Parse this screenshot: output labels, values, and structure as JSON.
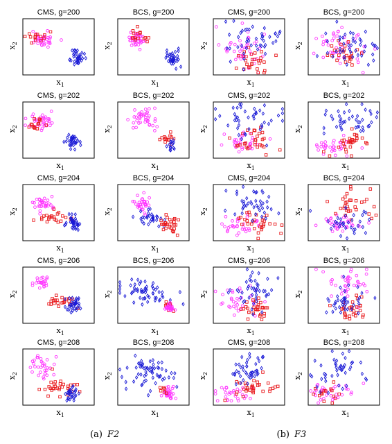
{
  "captions": [
    {
      "prefix": "(a)",
      "label": "F2"
    },
    {
      "prefix": "(b)",
      "label": "F3"
    }
  ],
  "axis": {
    "x_base": "x",
    "x_sub": "1",
    "y_base": "x",
    "y_sub": "2"
  },
  "colors": {
    "magenta": "#ff33ff",
    "red": "#e8191c",
    "blue": "#1a1ad6",
    "frame": "#000000"
  },
  "legend": {
    "magenta": "circle",
    "red": "square",
    "blue": "diamond"
  },
  "chart_data": [
    {
      "type": "scatter",
      "title": "CMS, g=200",
      "xlabel": "x1",
      "ylabel": "x2",
      "seed": 11,
      "clusters": [
        {
          "color": "magenta",
          "marker": "circle",
          "cx": 0.28,
          "cy": 0.62,
          "sx": 0.08,
          "sy": 0.07,
          "n": 36
        },
        {
          "color": "red",
          "marker": "square",
          "cx": 0.22,
          "cy": 0.65,
          "sx": 0.08,
          "sy": 0.08,
          "n": 14
        },
        {
          "color": "blue",
          "marker": "diamond",
          "cx": 0.76,
          "cy": 0.3,
          "sx": 0.05,
          "sy": 0.07,
          "n": 38
        }
      ]
    },
    {
      "type": "scatter",
      "title": "BCS, g=200",
      "xlabel": "x1",
      "ylabel": "x2",
      "seed": 12,
      "clusters": [
        {
          "color": "magenta",
          "marker": "circle",
          "cx": 0.27,
          "cy": 0.63,
          "sx": 0.07,
          "sy": 0.07,
          "n": 34
        },
        {
          "color": "red",
          "marker": "square",
          "cx": 0.3,
          "cy": 0.68,
          "sx": 0.09,
          "sy": 0.08,
          "n": 16
        },
        {
          "color": "blue",
          "marker": "diamond",
          "cx": 0.77,
          "cy": 0.3,
          "sx": 0.05,
          "sy": 0.07,
          "n": 38
        }
      ]
    },
    {
      "type": "scatter",
      "title": "CMS, g=200",
      "xlabel": "x1",
      "ylabel": "x2",
      "seed": 13,
      "clusters": [
        {
          "color": "magenta",
          "marker": "circle",
          "cx": 0.4,
          "cy": 0.45,
          "sx": 0.18,
          "sy": 0.2,
          "n": 40
        },
        {
          "color": "red",
          "marker": "square",
          "cx": 0.58,
          "cy": 0.25,
          "sx": 0.13,
          "sy": 0.12,
          "n": 28
        },
        {
          "color": "blue",
          "marker": "diamond",
          "cx": 0.52,
          "cy": 0.6,
          "sx": 0.2,
          "sy": 0.2,
          "n": 45
        }
      ]
    },
    {
      "type": "scatter",
      "title": "BCS, g=200",
      "xlabel": "x1",
      "ylabel": "x2",
      "seed": 14,
      "clusters": [
        {
          "color": "magenta",
          "marker": "circle",
          "cx": 0.44,
          "cy": 0.5,
          "sx": 0.18,
          "sy": 0.2,
          "n": 40
        },
        {
          "color": "red",
          "marker": "square",
          "cx": 0.5,
          "cy": 0.32,
          "sx": 0.13,
          "sy": 0.12,
          "n": 26
        },
        {
          "color": "blue",
          "marker": "diamond",
          "cx": 0.6,
          "cy": 0.48,
          "sx": 0.2,
          "sy": 0.2,
          "n": 44
        }
      ]
    },
    {
      "type": "scatter",
      "title": "CMS, g=202",
      "xlabel": "x1",
      "ylabel": "x2",
      "seed": 21,
      "clusters": [
        {
          "color": "magenta",
          "marker": "circle",
          "cx": 0.28,
          "cy": 0.65,
          "sx": 0.09,
          "sy": 0.08,
          "n": 34
        },
        {
          "color": "red",
          "marker": "square",
          "cx": 0.19,
          "cy": 0.58,
          "sx": 0.07,
          "sy": 0.06,
          "n": 16
        },
        {
          "color": "blue",
          "marker": "diamond",
          "cx": 0.7,
          "cy": 0.3,
          "sx": 0.05,
          "sy": 0.07,
          "n": 34
        }
      ]
    },
    {
      "type": "scatter",
      "title": "BCS, g=202",
      "xlabel": "x1",
      "ylabel": "x2",
      "seed": 22,
      "clusters": [
        {
          "color": "magenta",
          "marker": "circle",
          "cx": 0.32,
          "cy": 0.68,
          "sx": 0.1,
          "sy": 0.09,
          "n": 40
        },
        {
          "color": "red",
          "marker": "square",
          "cx": 0.7,
          "cy": 0.34,
          "sx": 0.06,
          "sy": 0.05,
          "n": 14
        },
        {
          "color": "blue",
          "marker": "diamond",
          "cx": 0.73,
          "cy": 0.22,
          "sx": 0.04,
          "sy": 0.05,
          "n": 14
        }
      ]
    },
    {
      "type": "scatter",
      "title": "CMS, g=202",
      "xlabel": "x1",
      "ylabel": "x2",
      "seed": 23,
      "clusters": [
        {
          "color": "magenta",
          "marker": "circle",
          "cx": 0.36,
          "cy": 0.28,
          "sx": 0.14,
          "sy": 0.08,
          "n": 32
        },
        {
          "color": "red",
          "marker": "square",
          "cx": 0.55,
          "cy": 0.32,
          "sx": 0.14,
          "sy": 0.1,
          "n": 30
        },
        {
          "color": "blue",
          "marker": "diamond",
          "cx": 0.5,
          "cy": 0.68,
          "sx": 0.2,
          "sy": 0.16,
          "n": 44
        }
      ]
    },
    {
      "type": "scatter",
      "title": "BCS, g=202",
      "xlabel": "x1",
      "ylabel": "x2",
      "seed": 24,
      "clusters": [
        {
          "color": "magenta",
          "marker": "circle",
          "cx": 0.38,
          "cy": 0.24,
          "sx": 0.14,
          "sy": 0.08,
          "n": 32
        },
        {
          "color": "red",
          "marker": "square",
          "cx": 0.6,
          "cy": 0.28,
          "sx": 0.14,
          "sy": 0.1,
          "n": 30
        },
        {
          "color": "blue",
          "marker": "diamond",
          "cx": 0.56,
          "cy": 0.68,
          "sx": 0.18,
          "sy": 0.16,
          "n": 42
        }
      ]
    },
    {
      "type": "scatter",
      "title": "CMS, g=204",
      "xlabel": "x1",
      "ylabel": "x2",
      "seed": 31,
      "clusters": [
        {
          "color": "magenta",
          "marker": "circle",
          "cx": 0.3,
          "cy": 0.66,
          "sx": 0.07,
          "sy": 0.08,
          "n": 32
        },
        {
          "color": "red",
          "marker": "square",
          "cx": 0.45,
          "cy": 0.42,
          "sx": 0.1,
          "sy": 0.06,
          "n": 24
        },
        {
          "color": "blue",
          "marker": "diamond",
          "cx": 0.72,
          "cy": 0.3,
          "sx": 0.07,
          "sy": 0.07,
          "n": 36
        }
      ]
    },
    {
      "type": "scatter",
      "title": "BCS, g=204",
      "xlabel": "x1",
      "ylabel": "x2",
      "seed": 32,
      "clusters": [
        {
          "color": "magenta",
          "marker": "circle",
          "cx": 0.32,
          "cy": 0.66,
          "sx": 0.07,
          "sy": 0.07,
          "n": 32
        },
        {
          "color": "blue",
          "marker": "diamond",
          "cx": 0.46,
          "cy": 0.4,
          "sx": 0.1,
          "sy": 0.07,
          "n": 30
        },
        {
          "color": "red",
          "marker": "square",
          "cx": 0.74,
          "cy": 0.28,
          "sx": 0.06,
          "sy": 0.06,
          "n": 30
        }
      ]
    },
    {
      "type": "scatter",
      "title": "CMS, g=204",
      "xlabel": "x1",
      "ylabel": "x2",
      "seed": 33,
      "clusters": [
        {
          "color": "magenta",
          "marker": "circle",
          "cx": 0.38,
          "cy": 0.28,
          "sx": 0.14,
          "sy": 0.08,
          "n": 32
        },
        {
          "color": "red",
          "marker": "square",
          "cx": 0.58,
          "cy": 0.3,
          "sx": 0.14,
          "sy": 0.1,
          "n": 30
        },
        {
          "color": "blue",
          "marker": "diamond",
          "cx": 0.56,
          "cy": 0.66,
          "sx": 0.16,
          "sy": 0.15,
          "n": 42
        }
      ]
    },
    {
      "type": "scatter",
      "title": "BCS, g=204",
      "xlabel": "x1",
      "ylabel": "x2",
      "seed": 34,
      "clusters": [
        {
          "color": "magenta",
          "marker": "circle",
          "cx": 0.46,
          "cy": 0.28,
          "sx": 0.16,
          "sy": 0.08,
          "n": 32
        },
        {
          "color": "red",
          "marker": "square",
          "cx": 0.62,
          "cy": 0.62,
          "sx": 0.16,
          "sy": 0.16,
          "n": 32
        },
        {
          "color": "blue",
          "marker": "diamond",
          "cx": 0.52,
          "cy": 0.28,
          "sx": 0.16,
          "sy": 0.12,
          "n": 34
        }
      ]
    },
    {
      "type": "scatter",
      "title": "CMS, g=206",
      "xlabel": "x1",
      "ylabel": "x2",
      "seed": 41,
      "clusters": [
        {
          "color": "magenta",
          "marker": "circle",
          "cx": 0.26,
          "cy": 0.72,
          "sx": 0.06,
          "sy": 0.06,
          "n": 24
        },
        {
          "color": "red",
          "marker": "square",
          "cx": 0.52,
          "cy": 0.4,
          "sx": 0.1,
          "sy": 0.05,
          "n": 24
        },
        {
          "color": "blue",
          "marker": "diamond",
          "cx": 0.72,
          "cy": 0.34,
          "sx": 0.05,
          "sy": 0.06,
          "n": 36
        }
      ]
    },
    {
      "type": "scatter",
      "title": "BCS, g=206",
      "xlabel": "x1",
      "ylabel": "x2",
      "seed": 42,
      "clusters": [
        {
          "color": "blue",
          "marker": "diamond",
          "cx": 0.4,
          "cy": 0.55,
          "sx": 0.16,
          "sy": 0.12,
          "n": 56
        },
        {
          "color": "red",
          "marker": "square",
          "cx": 0.7,
          "cy": 0.3,
          "sx": 0.04,
          "sy": 0.04,
          "n": 10
        },
        {
          "color": "magenta",
          "marker": "circle",
          "cx": 0.74,
          "cy": 0.28,
          "sx": 0.04,
          "sy": 0.05,
          "n": 26
        }
      ]
    },
    {
      "type": "scatter",
      "title": "CMS, g=206",
      "xlabel": "x1",
      "ylabel": "x2",
      "seed": 43,
      "clusters": [
        {
          "color": "magenta",
          "marker": "circle",
          "cx": 0.34,
          "cy": 0.4,
          "sx": 0.14,
          "sy": 0.12,
          "n": 32
        },
        {
          "color": "red",
          "marker": "square",
          "cx": 0.62,
          "cy": 0.3,
          "sx": 0.12,
          "sy": 0.12,
          "n": 30
        },
        {
          "color": "blue",
          "marker": "diamond",
          "cx": 0.58,
          "cy": 0.65,
          "sx": 0.16,
          "sy": 0.2,
          "n": 44
        }
      ]
    },
    {
      "type": "scatter",
      "title": "BCS, g=206",
      "xlabel": "x1",
      "ylabel": "x2",
      "seed": 44,
      "clusters": [
        {
          "color": "magenta",
          "marker": "circle",
          "cx": 0.6,
          "cy": 0.68,
          "sx": 0.16,
          "sy": 0.16,
          "n": 38
        },
        {
          "color": "red",
          "marker": "square",
          "cx": 0.62,
          "cy": 0.28,
          "sx": 0.12,
          "sy": 0.12,
          "n": 30
        },
        {
          "color": "blue",
          "marker": "diamond",
          "cx": 0.48,
          "cy": 0.4,
          "sx": 0.16,
          "sy": 0.14,
          "n": 38
        }
      ]
    },
    {
      "type": "scatter",
      "title": "CMS, g=208",
      "xlabel": "x1",
      "ylabel": "x2",
      "seed": 51,
      "clusters": [
        {
          "color": "magenta",
          "marker": "circle",
          "cx": 0.28,
          "cy": 0.66,
          "sx": 0.11,
          "sy": 0.1,
          "n": 32
        },
        {
          "color": "red",
          "marker": "square",
          "cx": 0.52,
          "cy": 0.36,
          "sx": 0.13,
          "sy": 0.1,
          "n": 30
        },
        {
          "color": "blue",
          "marker": "diamond",
          "cx": 0.7,
          "cy": 0.2,
          "sx": 0.05,
          "sy": 0.07,
          "n": 30
        }
      ]
    },
    {
      "type": "scatter",
      "title": "BCS, g=208",
      "xlabel": "x1",
      "ylabel": "x2",
      "seed": 52,
      "clusters": [
        {
          "color": "blue",
          "marker": "diamond",
          "cx": 0.42,
          "cy": 0.58,
          "sx": 0.18,
          "sy": 0.14,
          "n": 62
        },
        {
          "color": "magenta",
          "marker": "circle",
          "cx": 0.72,
          "cy": 0.22,
          "sx": 0.04,
          "sy": 0.06,
          "n": 30
        },
        {
          "color": "red",
          "marker": "square",
          "cx": 0.66,
          "cy": 0.28,
          "sx": 0.04,
          "sy": 0.04,
          "n": 6
        }
      ]
    },
    {
      "type": "scatter",
      "title": "CMS, g=208",
      "xlabel": "x1",
      "ylabel": "x2",
      "seed": 53,
      "clusters": [
        {
          "color": "magenta",
          "marker": "circle",
          "cx": 0.28,
          "cy": 0.22,
          "sx": 0.14,
          "sy": 0.08,
          "n": 30
        },
        {
          "color": "red",
          "marker": "square",
          "cx": 0.52,
          "cy": 0.3,
          "sx": 0.14,
          "sy": 0.1,
          "n": 32
        },
        {
          "color": "blue",
          "marker": "diamond",
          "cx": 0.46,
          "cy": 0.66,
          "sx": 0.18,
          "sy": 0.14,
          "n": 44
        }
      ]
    },
    {
      "type": "scatter",
      "title": "BCS, g=208",
      "xlabel": "x1",
      "ylabel": "x2",
      "seed": 54,
      "clusters": [
        {
          "color": "magenta",
          "marker": "circle",
          "cx": 0.34,
          "cy": 0.24,
          "sx": 0.16,
          "sy": 0.1,
          "n": 32
        },
        {
          "color": "red",
          "marker": "square",
          "cx": 0.28,
          "cy": 0.24,
          "sx": 0.1,
          "sy": 0.08,
          "n": 16
        },
        {
          "color": "blue",
          "marker": "diamond",
          "cx": 0.46,
          "cy": 0.62,
          "sx": 0.2,
          "sy": 0.16,
          "n": 44
        }
      ]
    }
  ]
}
